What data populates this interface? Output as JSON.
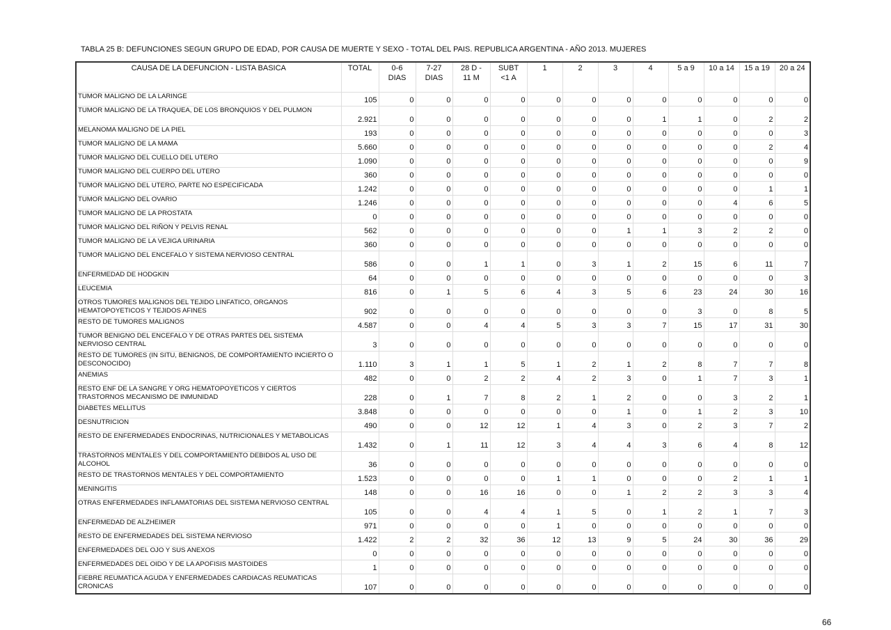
{
  "title": "TABLA 25 B: DEFUNCIONES SEGUN GRUPO DE EDAD, POR CAUSA DE MUERTE Y SEXO - TOTAL DEL PAIS.  REPUBLICA ARGENTINA - AÑO 2013. MUJERES",
  "headers": [
    "CAUSA DE LA DEFUNCION - LISTA BASICA",
    "TOTAL",
    "0-6 DIAS",
    "7-27 DIAS",
    "28 D - 11 M",
    "SUBT <1 A",
    "1",
    "2",
    "3",
    "4",
    "5 a 9",
    "10 a 14",
    "15 a 19",
    "20 a 24"
  ],
  "rows": [
    {
      "cause": "TUMOR MALIGNO DE LA LARINGE",
      "values": [
        "105",
        "0",
        "0",
        "0",
        "0",
        "0",
        "0",
        "0",
        "0",
        "0",
        "0",
        "0",
        "0"
      ]
    },
    {
      "cause": "TUMOR MALIGNO DE LA TRAQUEA,  DE LOS BRONQUIOS Y DEL PULMON",
      "values": [
        "2.921",
        "0",
        "0",
        "0",
        "0",
        "0",
        "0",
        "0",
        "1",
        "1",
        "0",
        "2",
        "2"
      ]
    },
    {
      "cause": "MELANOMA MALIGNO DE LA PIEL",
      "values": [
        "193",
        "0",
        "0",
        "0",
        "0",
        "0",
        "0",
        "0",
        "0",
        "0",
        "0",
        "0",
        "3"
      ]
    },
    {
      "cause": "TUMOR MALIGNO DE LA MAMA",
      "values": [
        "5.660",
        "0",
        "0",
        "0",
        "0",
        "0",
        "0",
        "0",
        "0",
        "0",
        "0",
        "2",
        "4"
      ]
    },
    {
      "cause": "TUMOR MALIGNO DEL CUELLO DEL UTERO",
      "values": [
        "1.090",
        "0",
        "0",
        "0",
        "0",
        "0",
        "0",
        "0",
        "0",
        "0",
        "0",
        "0",
        "9"
      ]
    },
    {
      "cause": "TUMOR MALIGNO DEL CUERPO DEL UTERO",
      "values": [
        "360",
        "0",
        "0",
        "0",
        "0",
        "0",
        "0",
        "0",
        "0",
        "0",
        "0",
        "0",
        "0"
      ]
    },
    {
      "cause": "TUMOR MALIGNO DEL UTERO, PARTE NO ESPECIFICADA",
      "values": [
        "1.242",
        "0",
        "0",
        "0",
        "0",
        "0",
        "0",
        "0",
        "0",
        "0",
        "0",
        "1",
        "1"
      ]
    },
    {
      "cause": "TUMOR MALIGNO DEL OVARIO",
      "values": [
        "1.246",
        "0",
        "0",
        "0",
        "0",
        "0",
        "0",
        "0",
        "0",
        "0",
        "4",
        "6",
        "5"
      ]
    },
    {
      "cause": "TUMOR MALIGNO DE LA PROSTATA",
      "values": [
        "0",
        "0",
        "0",
        "0",
        "0",
        "0",
        "0",
        "0",
        "0",
        "0",
        "0",
        "0",
        "0"
      ]
    },
    {
      "cause": "TUMOR MALIGNO DEL RIÑON Y PELVIS RENAL",
      "values": [
        "562",
        "0",
        "0",
        "0",
        "0",
        "0",
        "0",
        "1",
        "1",
        "3",
        "2",
        "2",
        "0"
      ]
    },
    {
      "cause": "TUMOR MALIGNO DE LA VEJIGA URINARIA",
      "values": [
        "360",
        "0",
        "0",
        "0",
        "0",
        "0",
        "0",
        "0",
        "0",
        "0",
        "0",
        "0",
        "0"
      ]
    },
    {
      "cause": "TUMOR MALIGNO DEL ENCEFALO Y SISTEMA NERVIOSO CENTRAL",
      "values": [
        "586",
        "0",
        "0",
        "1",
        "1",
        "0",
        "3",
        "1",
        "2",
        "15",
        "6",
        "11",
        "7"
      ]
    },
    {
      "cause": "ENFERMEDAD DE HODGKIN",
      "values": [
        "64",
        "0",
        "0",
        "0",
        "0",
        "0",
        "0",
        "0",
        "0",
        "0",
        "0",
        "0",
        "3"
      ]
    },
    {
      "cause": "LEUCEMIA",
      "values": [
        "816",
        "0",
        "1",
        "5",
        "6",
        "4",
        "3",
        "5",
        "6",
        "23",
        "24",
        "30",
        "16"
      ]
    },
    {
      "cause": "OTROS TUMORES MALIGNOS DEL TEJIDO LINFATICO, ORGANOS HEMATOPOYETICOS Y TEJIDOS AFINES",
      "values": [
        "902",
        "0",
        "0",
        "0",
        "0",
        "0",
        "0",
        "0",
        "0",
        "3",
        "0",
        "8",
        "5"
      ]
    },
    {
      "cause": "RESTO DE TUMORES MALIGNOS",
      "values": [
        "4.587",
        "0",
        "0",
        "4",
        "4",
        "5",
        "3",
        "3",
        "7",
        "15",
        "17",
        "31",
        "30"
      ]
    },
    {
      "cause": "TUMOR BENIGNO DEL ENCEFALO Y DE OTRAS PARTES DEL SISTEMA NERVIOSO CENTRAL",
      "values": [
        "3",
        "0",
        "0",
        "0",
        "0",
        "0",
        "0",
        "0",
        "0",
        "0",
        "0",
        "0",
        "0"
      ]
    },
    {
      "cause": "RESTO DE TUMORES (IN SITU, BENIGNOS, DE COMPORTAMIENTO INCIERTO O DESCONOCIDO)",
      "values": [
        "1.110",
        "3",
        "1",
        "1",
        "5",
        "1",
        "2",
        "1",
        "2",
        "8",
        "7",
        "7",
        "8"
      ]
    },
    {
      "cause": "ANEMIAS",
      "values": [
        "482",
        "0",
        "0",
        "2",
        "2",
        "4",
        "2",
        "3",
        "0",
        "1",
        "7",
        "3",
        "1"
      ]
    },
    {
      "cause": "RESTO ENF DE LA SANGRE Y ORG HEMATOPOYETICOS Y CIERTOS TRASTORNOS MECANISMO DE  INMUNIDAD",
      "values": [
        "228",
        "0",
        "1",
        "7",
        "8",
        "2",
        "1",
        "2",
        "0",
        "0",
        "3",
        "2",
        "1"
      ]
    },
    {
      "cause": "DIABETES MELLITUS",
      "values": [
        "3.848",
        "0",
        "0",
        "0",
        "0",
        "0",
        "0",
        "1",
        "0",
        "1",
        "2",
        "3",
        "10"
      ]
    },
    {
      "cause": "DESNUTRICION",
      "values": [
        "490",
        "0",
        "0",
        "12",
        "12",
        "1",
        "4",
        "3",
        "0",
        "2",
        "3",
        "7",
        "2"
      ]
    },
    {
      "cause": "RESTO DE ENFERMEDADES ENDOCRINAS, NUTRICIONALES Y METABOLICAS",
      "values": [
        "1.432",
        "0",
        "1",
        "11",
        "12",
        "3",
        "4",
        "4",
        "3",
        "6",
        "4",
        "8",
        "12"
      ]
    },
    {
      "cause": "TRASTORNOS MENTALES Y DEL COMPORTAMIENTO DEBIDOS AL USO DE ALCOHOL",
      "values": [
        "36",
        "0",
        "0",
        "0",
        "0",
        "0",
        "0",
        "0",
        "0",
        "0",
        "0",
        "0",
        "0"
      ]
    },
    {
      "cause": "RESTO DE TRASTORNOS MENTALES Y DEL COMPORTAMIENTO",
      "values": [
        "1.523",
        "0",
        "0",
        "0",
        "0",
        "1",
        "1",
        "0",
        "0",
        "0",
        "2",
        "1",
        "1"
      ]
    },
    {
      "cause": "MENINGITIS",
      "values": [
        "148",
        "0",
        "0",
        "16",
        "16",
        "0",
        "0",
        "1",
        "2",
        "2",
        "3",
        "3",
        "4"
      ]
    },
    {
      "cause": "OTRAS ENFERMEDADES INFLAMATORIAS DEL SISTEMA NERVIOSO CENTRAL",
      "values": [
        "105",
        "0",
        "0",
        "4",
        "4",
        "1",
        "5",
        "0",
        "1",
        "2",
        "1",
        "7",
        "3"
      ]
    },
    {
      "cause": "ENFERMEDAD DE ALZHEIMER",
      "values": [
        "971",
        "0",
        "0",
        "0",
        "0",
        "1",
        "0",
        "0",
        "0",
        "0",
        "0",
        "0",
        "0"
      ]
    },
    {
      "cause": "RESTO DE ENFERMEDADES DEL SISTEMA NERVIOSO",
      "values": [
        "1.422",
        "2",
        "2",
        "32",
        "36",
        "12",
        "13",
        "9",
        "5",
        "24",
        "30",
        "36",
        "29"
      ]
    },
    {
      "cause": "ENFERMEDADES DEL OJO Y SUS ANEXOS",
      "values": [
        "0",
        "0",
        "0",
        "0",
        "0",
        "0",
        "0",
        "0",
        "0",
        "0",
        "0",
        "0",
        "0"
      ]
    },
    {
      "cause": "ENFERMEDADES DEL OIDO Y DE LA APOFISIS MASTOIDES",
      "values": [
        "1",
        "0",
        "0",
        "0",
        "0",
        "0",
        "0",
        "0",
        "0",
        "0",
        "0",
        "0",
        "0"
      ]
    },
    {
      "cause": "FIEBRE REUMATICA AGUDA Y ENFERMEDADES CARDIACAS REUMATICAS CRONICAS",
      "values": [
        "107",
        "0",
        "0",
        "0",
        "0",
        "0",
        "0",
        "0",
        "0",
        "0",
        "0",
        "0",
        "0"
      ]
    }
  ],
  "page_number": "66"
}
